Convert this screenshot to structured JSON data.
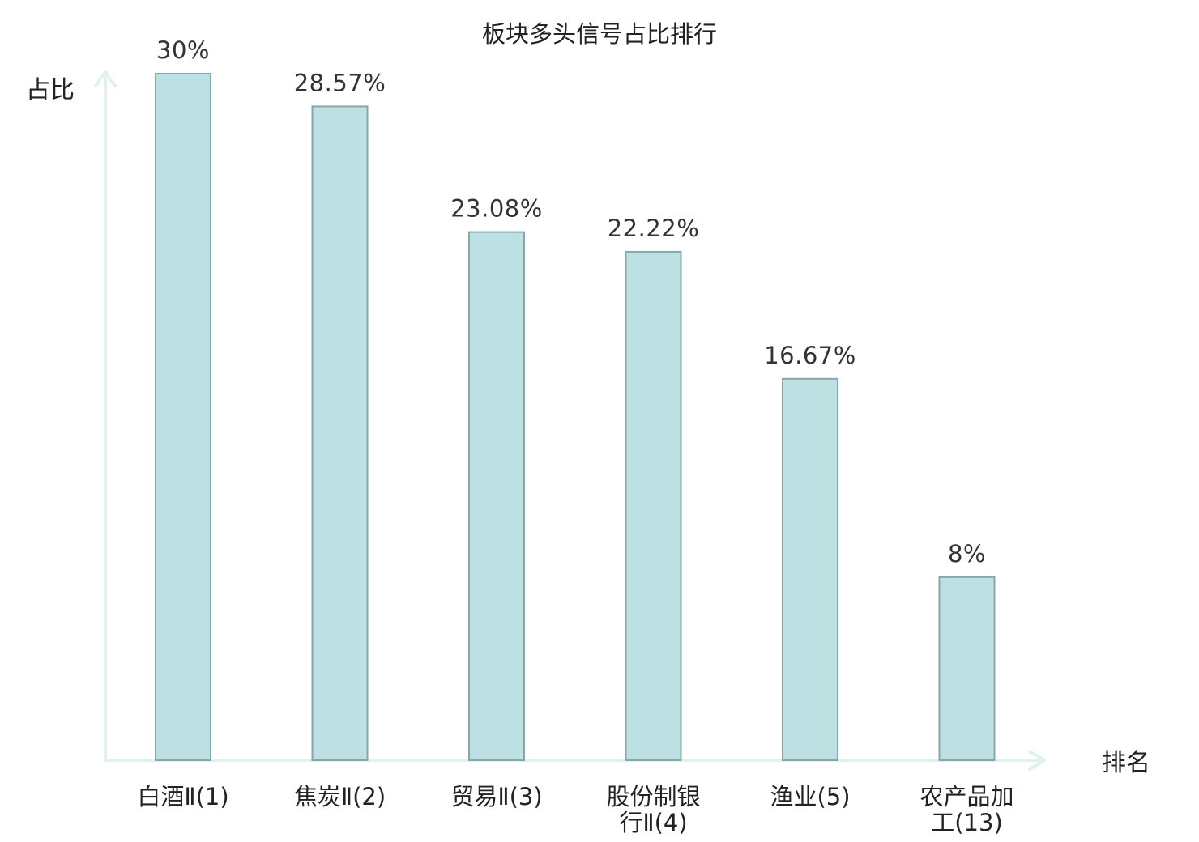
{
  "chart_data": {
    "type": "bar",
    "title": "板块多头信号占比排行",
    "ylabel": "占比",
    "xlabel": "排名",
    "ylim": [
      0,
      30
    ],
    "grid": false,
    "legend": "none",
    "categories": [
      [
        "白酒Ⅱ(1)"
      ],
      [
        "焦炭Ⅱ(2)"
      ],
      [
        "贸易Ⅱ(3)"
      ],
      [
        "股份制银",
        "行Ⅱ(4)"
      ],
      [
        "渔业(5)"
      ],
      [
        "农产品加",
        "工(13)"
      ]
    ],
    "values": [
      30,
      28.57,
      23.08,
      22.22,
      16.67,
      8
    ],
    "value_labels": [
      "30%",
      "28.57%",
      "23.08%",
      "22.22%",
      "16.67%",
      "8%"
    ],
    "highlight_index": 5,
    "colors": {
      "bar_fill": "#bde0e3",
      "bar_stroke": "#87a8ab",
      "axis": "#dff2ef",
      "text": "#222222",
      "highlight_text": "#e00000"
    }
  }
}
